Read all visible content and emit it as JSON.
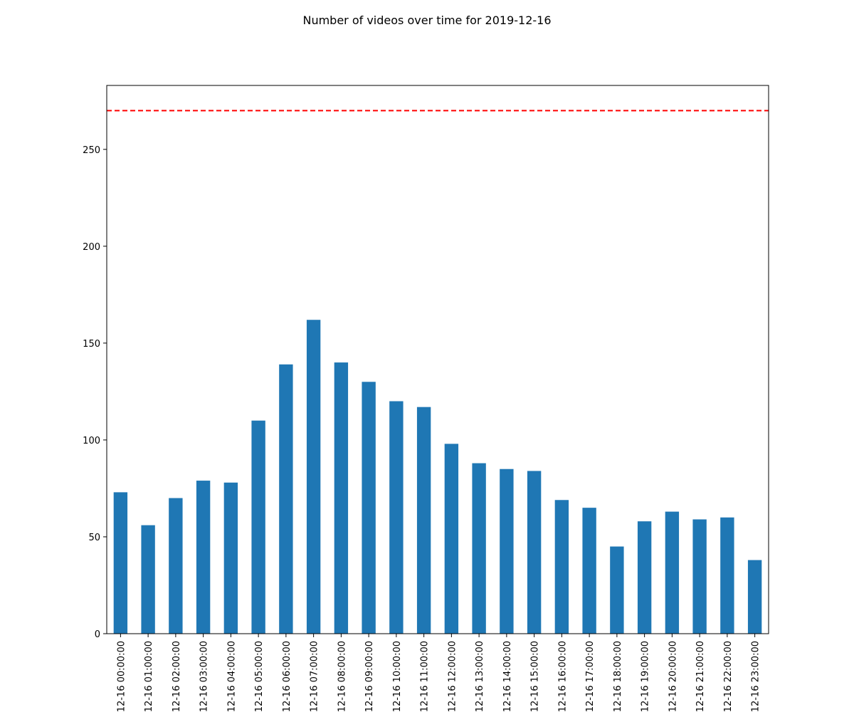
{
  "chart_data": {
    "type": "bar",
    "title": "Number of videos over time for 2019-12-16",
    "xlabel": "",
    "ylabel": "",
    "categories": [
      "2019-12-16 00:00:00",
      "2019-12-16 01:00:00",
      "2019-12-16 02:00:00",
      "2019-12-16 03:00:00",
      "2019-12-16 04:00:00",
      "2019-12-16 05:00:00",
      "2019-12-16 06:00:00",
      "2019-12-16 07:00:00",
      "2019-12-16 08:00:00",
      "2019-12-16 09:00:00",
      "2019-12-16 10:00:00",
      "2019-12-16 11:00:00",
      "2019-12-16 12:00:00",
      "2019-12-16 13:00:00",
      "2019-12-16 14:00:00",
      "2019-12-16 15:00:00",
      "2019-12-16 16:00:00",
      "2019-12-16 17:00:00",
      "2019-12-16 18:00:00",
      "2019-12-16 19:00:00",
      "2019-12-16 20:00:00",
      "2019-12-16 21:00:00",
      "2019-12-16 22:00:00",
      "2019-12-16 23:00:00"
    ],
    "values": [
      73,
      56,
      70,
      79,
      78,
      110,
      139,
      162,
      140,
      130,
      120,
      117,
      98,
      88,
      85,
      84,
      69,
      65,
      45,
      58,
      63,
      59,
      60,
      38
    ],
    "ylim": [
      0,
      283
    ],
    "yticks": [
      0,
      50,
      100,
      150,
      200,
      250
    ],
    "reference_line": {
      "y": 270,
      "style": "dashed",
      "color": "#ff0000"
    },
    "bar_color": "#1f77b4",
    "grid": false,
    "legend": "none"
  }
}
